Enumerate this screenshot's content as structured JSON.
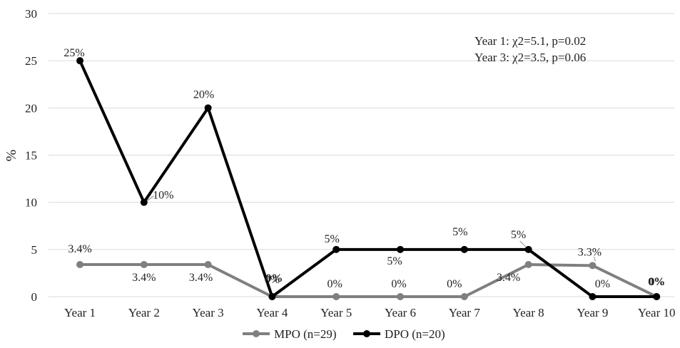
{
  "chart_data": {
    "type": "line",
    "title": "",
    "xlabel": "",
    "ylabel": "%",
    "categories": [
      "Year 1",
      "Year 2",
      "Year 3",
      "Year 4",
      "Year 5",
      "Year 6",
      "Year 7",
      "Year 8",
      "Year 9",
      "Year 10"
    ],
    "y_ticks": [
      "0",
      "5",
      "10",
      "15",
      "20",
      "25",
      "30"
    ],
    "ylim": [
      0,
      30
    ],
    "grid": "horizontal",
    "legend_position": "bottom",
    "colors": {
      "MPO": "#7f7f7f",
      "DPO": "#000000",
      "grid": "#d9d9d9"
    },
    "series": [
      {
        "name": "MPO (n=29)",
        "color": "#7f7f7f",
        "values": [
          3.4,
          3.4,
          3.4,
          0,
          0,
          0,
          0,
          3.4,
          3.3,
          0
        ],
        "labels": [
          "3.4%",
          "3.4%",
          "3.4%",
          "0%",
          "0%",
          "0%",
          "0%",
          "3.4%",
          "3.3%",
          "0%"
        ]
      },
      {
        "name": "DPO (n=20)",
        "color": "#000000",
        "values": [
          25,
          10,
          20,
          0,
          5,
          5,
          5,
          5,
          0,
          0
        ],
        "labels": [
          "25%",
          "10%",
          "20%",
          "0%",
          "5%",
          "5%",
          "5%",
          "5%",
          "0%",
          "0%"
        ]
      }
    ],
    "annotations": [
      "Year 1: χ2=5.1, p=0.02",
      "Year 3: χ2=3.5, p=0.06"
    ]
  }
}
